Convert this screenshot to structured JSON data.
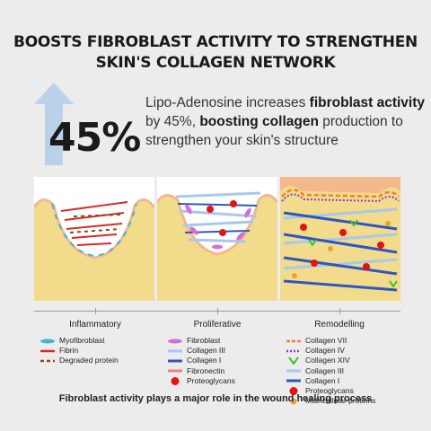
{
  "title_line1": "BOOSTS FIBROBLAST ACTIVITY TO STRENGTHEN",
  "title_line2": "SKIN'S COLLAGEN NETWORK",
  "stat_value": "45%",
  "description": {
    "part1": "Lipo-Adenosine increases ",
    "bold1": "fibroblast activity",
    "part2": " by 45%, ",
    "bold2": "boosting collagen",
    "part3": " production to strengthen your skin's structure"
  },
  "stages": [
    "Inflammatory",
    "Proliferative",
    "Remodelling"
  ],
  "legend_inflammatory": [
    "Myofibroblast",
    "Fibrin",
    "Degraded protein"
  ],
  "legend_proliferative": [
    "Fibroblast",
    "Collagen III",
    "Collagen I",
    "Fibronectin",
    "Proteoglycans"
  ],
  "legend_remodelling": [
    "Collagen VII",
    "Collagen IV",
    "Collagen XIV",
    "Collagen III",
    "Collagen I",
    "Proteoglycans",
    "Matricellular proteins"
  ],
  "footer": "Fibroblast activity plays a major role in the wound healing process",
  "colors": {
    "skin": "#f2dc8c",
    "wound_edge": "#f3b88c",
    "arrow": "#b9d2ea",
    "collagen_iii": "#a9c8ea",
    "collagen_i": "#2f55c4",
    "fibrin": "#d62b2b",
    "proteoglycan": "#e31414",
    "fibroblast": "#d46fd6",
    "myofibroblast": "#3fb8d8",
    "collagen_vii": "#ee8030",
    "collagen_iv": "#8a3ad0",
    "collagen_xiv": "#39c42b",
    "matricellular": "#f0a030"
  }
}
